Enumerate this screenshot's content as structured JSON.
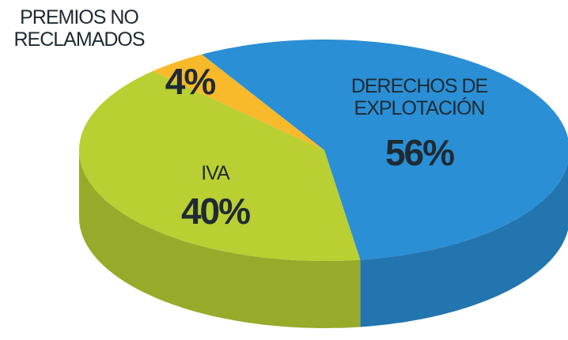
{
  "chart_data": {
    "type": "pie3d",
    "categories": [
      "DERECHOS DE EXPLOTACIÓN",
      "IVA",
      "PREMIOS NO RECLAMADOS"
    ],
    "values": [
      56,
      40,
      4
    ],
    "value_labels": [
      "56%",
      "40%",
      "4%"
    ],
    "colors": [
      "#2a8fd5",
      "#b9cf32",
      "#f8b92a"
    ]
  }
}
